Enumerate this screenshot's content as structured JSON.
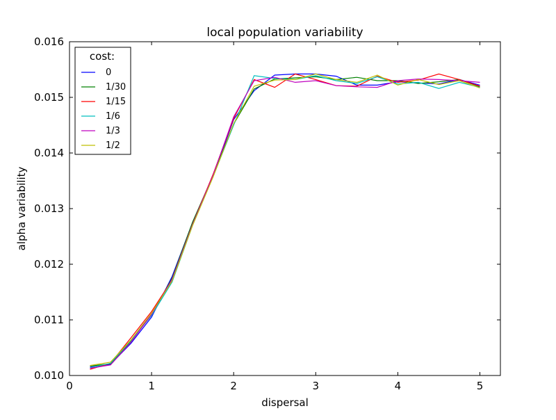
{
  "chart_data": {
    "type": "line",
    "title": "local population variability",
    "xlabel": "dispersal",
    "ylabel": "alpha variability",
    "xlim": [
      0,
      5.25
    ],
    "ylim": [
      0.01,
      0.016
    ],
    "xticks": [
      0,
      1,
      2,
      3,
      4,
      5
    ],
    "xtick_labels": [
      "0",
      "1",
      "2",
      "3",
      "4",
      "5"
    ],
    "yticks": [
      0.01,
      0.011,
      0.012,
      0.013,
      0.014,
      0.015,
      0.016
    ],
    "ytick_labels": [
      "0.010",
      "0.011",
      "0.012",
      "0.013",
      "0.014",
      "0.015",
      "0.016"
    ],
    "grid": false,
    "legend": {
      "title": "cost:",
      "placement": "top-left"
    },
    "x": [
      0.25,
      0.5,
      0.75,
      1.0,
      1.25,
      1.5,
      1.75,
      2.0,
      2.25,
      2.5,
      2.75,
      3.0,
      3.25,
      3.5,
      3.75,
      4.0,
      4.25,
      4.5,
      4.75,
      5.0
    ],
    "series": [
      {
        "name": "0",
        "color": "#0000ff",
        "values": [
          0.01015,
          0.0102,
          0.01058,
          0.01105,
          0.01178,
          0.01275,
          0.01358,
          0.0146,
          0.01512,
          0.0154,
          0.01542,
          0.01542,
          0.01538,
          0.01522,
          0.01522,
          0.01528,
          0.01526,
          0.01524,
          0.01532,
          0.01522
        ]
      },
      {
        "name": "1/30",
        "color": "#008000",
        "values": [
          0.01017,
          0.01021,
          0.01062,
          0.0111,
          0.01175,
          0.01276,
          0.0136,
          0.01452,
          0.01515,
          0.01533,
          0.01535,
          0.01537,
          0.01532,
          0.01536,
          0.0153,
          0.0153,
          0.01525,
          0.01528,
          0.01532,
          0.01519
        ]
      },
      {
        "name": "1/15",
        "color": "#ff0000",
        "values": [
          0.01011,
          0.01022,
          0.01068,
          0.01115,
          0.01172,
          0.01272,
          0.01362,
          0.01462,
          0.01532,
          0.01518,
          0.01542,
          0.01532,
          0.01521,
          0.0152,
          0.01538,
          0.01527,
          0.01531,
          0.01542,
          0.01532,
          0.0152
        ]
      },
      {
        "name": "1/6",
        "color": "#00bfbf",
        "values": [
          0.01014,
          0.01022,
          0.01063,
          0.01108,
          0.01168,
          0.0127,
          0.01358,
          0.0145,
          0.01539,
          0.01534,
          0.01532,
          0.01539,
          0.0153,
          0.01525,
          0.01537,
          0.01524,
          0.01527,
          0.01516,
          0.01527,
          0.01518
        ]
      },
      {
        "name": "1/3",
        "color": "#bf00bf",
        "values": [
          0.01013,
          0.01019,
          0.0106,
          0.0111,
          0.01173,
          0.01272,
          0.0136,
          0.01465,
          0.0153,
          0.01536,
          0.01527,
          0.0153,
          0.01521,
          0.01519,
          0.01518,
          0.0153,
          0.01533,
          0.01532,
          0.0153,
          0.01527
        ]
      },
      {
        "name": "1/2",
        "color": "#bfbf00",
        "values": [
          0.01018,
          0.01024,
          0.01064,
          0.01112,
          0.0117,
          0.0127,
          0.01357,
          0.01453,
          0.0152,
          0.01531,
          0.01532,
          0.01542,
          0.01532,
          0.01527,
          0.0154,
          0.01522,
          0.01532,
          0.01523,
          0.0153,
          0.01517
        ]
      }
    ]
  }
}
